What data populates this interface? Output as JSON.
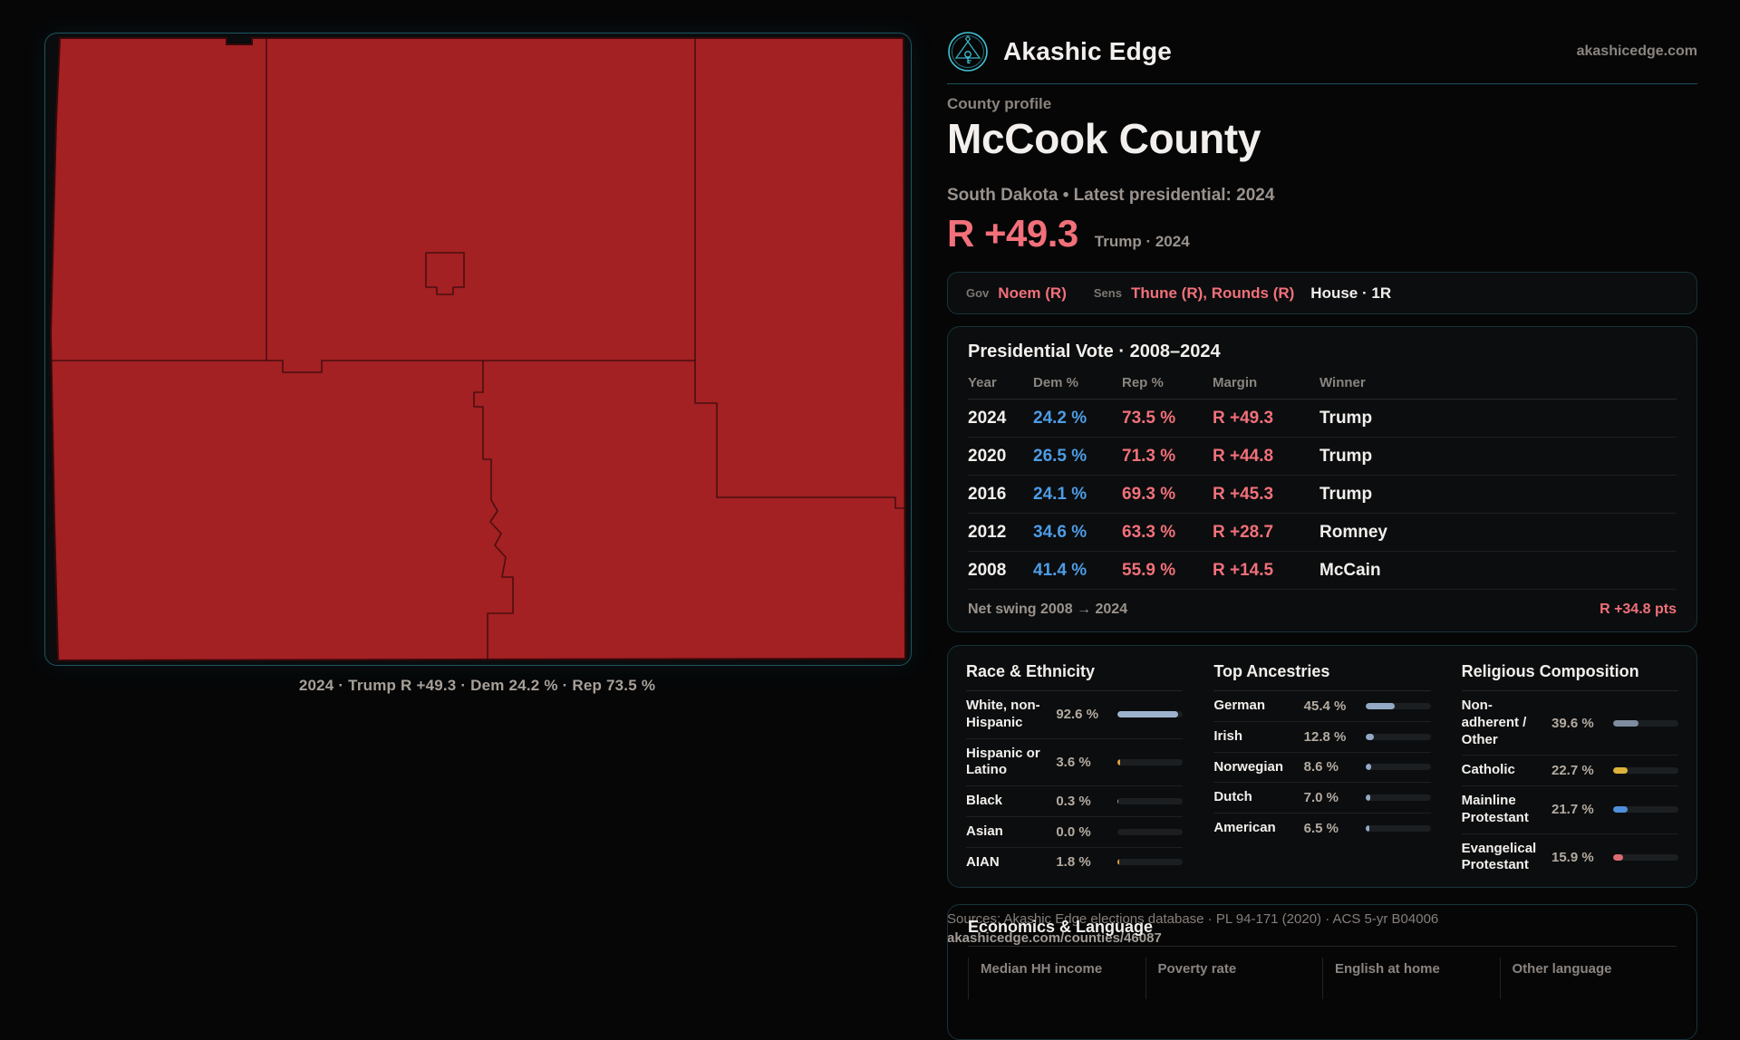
{
  "brand": {
    "name": "Akashic Edge",
    "domain": "akashicedge.com"
  },
  "header": {
    "eyebrow": "County profile",
    "title": "McCook County",
    "subtitle": "South Dakota • Latest presidential: 2024",
    "margin_big": "R +49.3",
    "margin_context": "Trump · 2024"
  },
  "officials": {
    "gov_label": "Gov",
    "gov": "Noem (R)",
    "sens_label": "Sens",
    "sens": "Thune (R), Rounds (R)",
    "house": "House · 1R"
  },
  "pres_card": {
    "title": "Presidential Vote · 2008–2024",
    "columns": [
      "Year",
      "Dem %",
      "Rep %",
      "Margin",
      "Winner"
    ],
    "rows": [
      {
        "year": "2024",
        "dem": "24.2 %",
        "rep": "73.5 %",
        "margin": "R +49.3",
        "winner": "Trump"
      },
      {
        "year": "2020",
        "dem": "26.5 %",
        "rep": "71.3 %",
        "margin": "R +44.8",
        "winner": "Trump"
      },
      {
        "year": "2016",
        "dem": "24.1 %",
        "rep": "69.3 %",
        "margin": "R +45.3",
        "winner": "Trump"
      },
      {
        "year": "2012",
        "dem": "34.6 %",
        "rep": "63.3 %",
        "margin": "R +28.7",
        "winner": "Romney"
      },
      {
        "year": "2008",
        "dem": "41.4 %",
        "rep": "55.9 %",
        "margin": "R +14.5",
        "winner": "McCain"
      }
    ],
    "net_swing_label": "Net swing 2008 → 2024",
    "net_swing_value": "R +34.8 pts"
  },
  "race": {
    "title": "Race & Ethnicity",
    "rows": [
      {
        "label": "White, non-Hispanic",
        "value": "92.6 %",
        "pct": 92.6,
        "color": "#9db3cd"
      },
      {
        "label": "Hispanic or Latino",
        "value": "3.6 %",
        "pct": 3.6,
        "color": "#dfa23d"
      },
      {
        "label": "Black",
        "value": "0.3 %",
        "pct": 0.3,
        "color": "#9aa7b8"
      },
      {
        "label": "Asian",
        "value": "0.0 %",
        "pct": 0.0,
        "color": "#9aa7b8"
      },
      {
        "label": "AIAN",
        "value": "1.8 %",
        "pct": 1.8,
        "color": "#dfa23d"
      }
    ]
  },
  "ancestries": {
    "title": "Top Ancestries",
    "rows": [
      {
        "label": "German",
        "value": "45.4 %",
        "pct": 45.4,
        "color": "#93a9c5"
      },
      {
        "label": "Irish",
        "value": "12.8 %",
        "pct": 12.8,
        "color": "#93a9c5"
      },
      {
        "label": "Norwegian",
        "value": "8.6 %",
        "pct": 8.6,
        "color": "#93a9c5"
      },
      {
        "label": "Dutch",
        "value": "7.0 %",
        "pct": 7.0,
        "color": "#93a9c5"
      },
      {
        "label": "American",
        "value": "6.5 %",
        "pct": 6.5,
        "color": "#93a9c5"
      }
    ]
  },
  "religion": {
    "title": "Religious Composition",
    "rows": [
      {
        "label": "Non-adherent / Other",
        "value": "39.6 %",
        "pct": 39.6,
        "color": "#7e8ba0"
      },
      {
        "label": "Catholic",
        "value": "22.7 %",
        "pct": 22.7,
        "color": "#dcb23a"
      },
      {
        "label": "Mainline Protestant",
        "value": "21.7 %",
        "pct": 21.7,
        "color": "#4e8edb"
      },
      {
        "label": "Evangelical Protestant",
        "value": "15.9 %",
        "pct": 15.9,
        "color": "#dd6b72"
      }
    ]
  },
  "economics": {
    "title": "Economics & Language",
    "columns": [
      "Median HH income",
      "Poverty rate",
      "English at home",
      "Other language"
    ]
  },
  "map": {
    "caption": "2024 · Trump R +49.3 · Dem 24.2 % · Rep 73.5 %",
    "fill": "#a32023"
  },
  "footer": {
    "line1": "Sources: Akashic Edge elections database · PL 94-171 (2020) · ACS 5-yr B04006",
    "line2": "akashicedge.com/counties/46087"
  },
  "colors": {
    "accent_teal": "#3fc3d6",
    "dem_blue": "#4e9ce6",
    "rep_red": "#f1707a",
    "card_border": "#17333a"
  }
}
